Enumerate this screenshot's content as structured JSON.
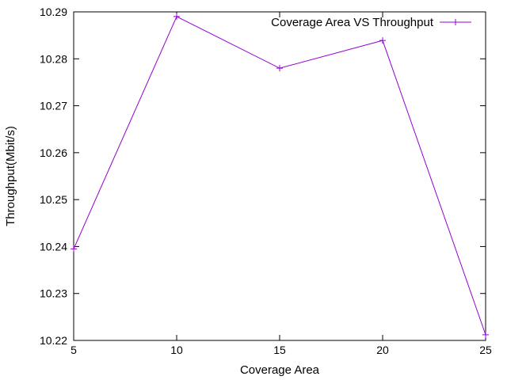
{
  "chart_data": {
    "type": "line",
    "title": "",
    "xlabel": "Coverage Area",
    "ylabel": "Throughput(Mbit/s)",
    "xlim": [
      5,
      25
    ],
    "ylim": [
      10.22,
      10.29
    ],
    "xticks": [
      "5",
      "10",
      "15",
      "20",
      "25"
    ],
    "yticks": [
      "10.22",
      "10.23",
      "10.24",
      "10.25",
      "10.26",
      "10.27",
      "10.28",
      "10.29"
    ],
    "grid": false,
    "legend_position": "top-right",
    "series": [
      {
        "name": "Coverage Area VS Throughput",
        "color": "#9400d3",
        "marker": "plus",
        "x": [
          5,
          10,
          15,
          20,
          25
        ],
        "y": [
          10.2395,
          10.289,
          10.278,
          10.2839,
          10.2212
        ]
      }
    ]
  }
}
